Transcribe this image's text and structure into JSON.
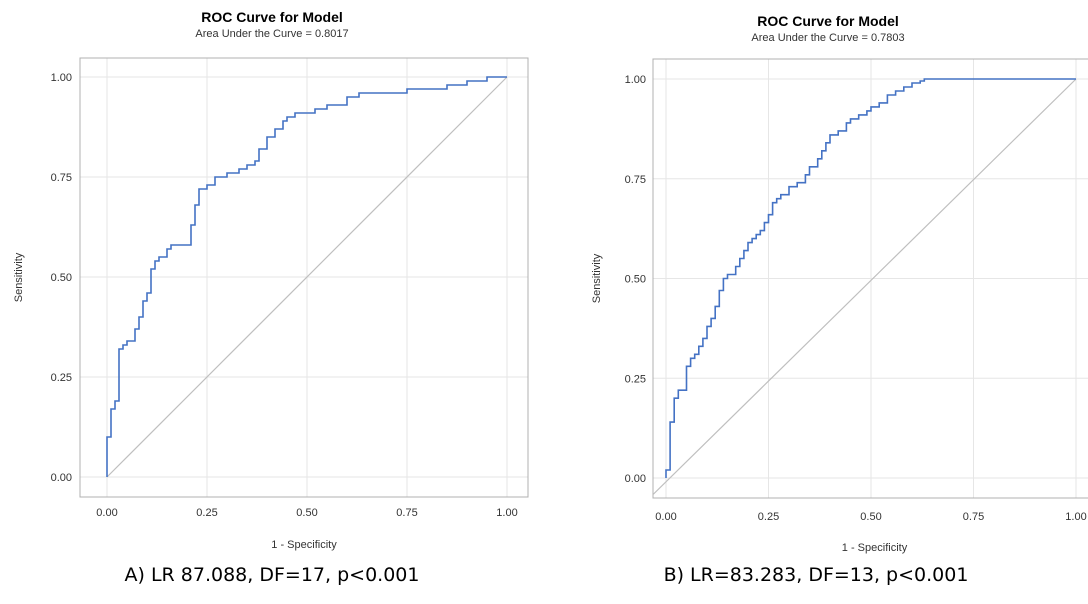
{
  "chart_data": [
    {
      "type": "line",
      "title": "ROC Curve for Model",
      "subtitle": "Area Under the Curve = 0.8017",
      "xlabel": "1 - Specificity",
      "ylabel": "Sensitivity",
      "xlim": [
        0,
        1
      ],
      "ylim": [
        0,
        1
      ],
      "xticks": [
        "0.00",
        "0.25",
        "0.50",
        "0.75",
        "1.00"
      ],
      "yticks": [
        "0.00",
        "0.25",
        "0.50",
        "0.75",
        "1.00"
      ],
      "grid": true,
      "caption": "A) LR 87.088, DF=17, p<0.001",
      "series": [
        {
          "color": "#4472c4",
          "x": [
            0.0,
            0.0,
            0.01,
            0.01,
            0.02,
            0.02,
            0.03,
            0.03,
            0.04,
            0.05,
            0.06,
            0.07,
            0.08,
            0.09,
            0.1,
            0.11,
            0.12,
            0.13,
            0.14,
            0.15,
            0.16,
            0.17,
            0.18,
            0.2,
            0.21,
            0.22,
            0.23,
            0.24,
            0.25,
            0.27,
            0.3,
            0.33,
            0.35,
            0.37,
            0.38,
            0.4,
            0.42,
            0.44,
            0.45,
            0.47,
            0.5,
            0.52,
            0.55,
            0.6,
            0.63,
            0.7,
            0.75,
            0.8,
            0.85,
            0.9,
            0.95,
            1.0
          ],
          "y": [
            0.0,
            0.1,
            0.11,
            0.17,
            0.18,
            0.19,
            0.28,
            0.32,
            0.33,
            0.34,
            0.34,
            0.37,
            0.4,
            0.44,
            0.46,
            0.52,
            0.54,
            0.55,
            0.55,
            0.57,
            0.58,
            0.58,
            0.58,
            0.58,
            0.63,
            0.68,
            0.72,
            0.72,
            0.73,
            0.75,
            0.76,
            0.77,
            0.78,
            0.79,
            0.82,
            0.85,
            0.87,
            0.89,
            0.9,
            0.91,
            0.91,
            0.92,
            0.93,
            0.95,
            0.96,
            0.96,
            0.97,
            0.97,
            0.98,
            0.99,
            1.0,
            1.0
          ]
        },
        {
          "color": "#bfbfbf",
          "x": [
            0,
            1
          ],
          "y": [
            0,
            1
          ]
        }
      ]
    },
    {
      "type": "line",
      "title": "ROC Curve for Model",
      "subtitle": "Area Under the Curve = 0.7803",
      "xlabel": "1 - Specificity",
      "ylabel": "Sensitivity",
      "xlim": [
        0,
        1
      ],
      "ylim": [
        0,
        1
      ],
      "xticks": [
        "0.00",
        "0.25",
        "0.50",
        "0.75",
        "1.00"
      ],
      "yticks": [
        "0.00",
        "0.25",
        "0.50",
        "0.75",
        "1.00"
      ],
      "grid": true,
      "caption": "B) LR=83.283, DF=13, p<0.001",
      "series": [
        {
          "color": "#4472c4",
          "x": [
            0.0,
            0.0,
            0.01,
            0.01,
            0.02,
            0.03,
            0.04,
            0.05,
            0.05,
            0.06,
            0.07,
            0.08,
            0.09,
            0.1,
            0.11,
            0.12,
            0.13,
            0.14,
            0.15,
            0.17,
            0.18,
            0.19,
            0.2,
            0.21,
            0.22,
            0.23,
            0.24,
            0.25,
            0.26,
            0.27,
            0.28,
            0.3,
            0.32,
            0.34,
            0.35,
            0.37,
            0.38,
            0.39,
            0.4,
            0.42,
            0.44,
            0.45,
            0.47,
            0.49,
            0.5,
            0.52,
            0.54,
            0.56,
            0.58,
            0.6,
            0.62,
            0.63,
            0.75,
            0.85,
            1.0
          ],
          "y": [
            0.0,
            0.02,
            0.03,
            0.14,
            0.2,
            0.22,
            0.22,
            0.23,
            0.28,
            0.3,
            0.31,
            0.33,
            0.35,
            0.38,
            0.4,
            0.43,
            0.47,
            0.5,
            0.51,
            0.53,
            0.55,
            0.57,
            0.59,
            0.6,
            0.61,
            0.62,
            0.64,
            0.66,
            0.69,
            0.7,
            0.71,
            0.73,
            0.74,
            0.76,
            0.78,
            0.8,
            0.82,
            0.84,
            0.86,
            0.87,
            0.89,
            0.9,
            0.91,
            0.92,
            0.93,
            0.94,
            0.96,
            0.97,
            0.98,
            0.99,
            0.995,
            1.0,
            1.0,
            1.0,
            1.0
          ]
        },
        {
          "color": "#bfbfbf",
          "x": [
            -0.05,
            1.0
          ],
          "y": [
            -0.06,
            1.0
          ]
        }
      ]
    }
  ]
}
